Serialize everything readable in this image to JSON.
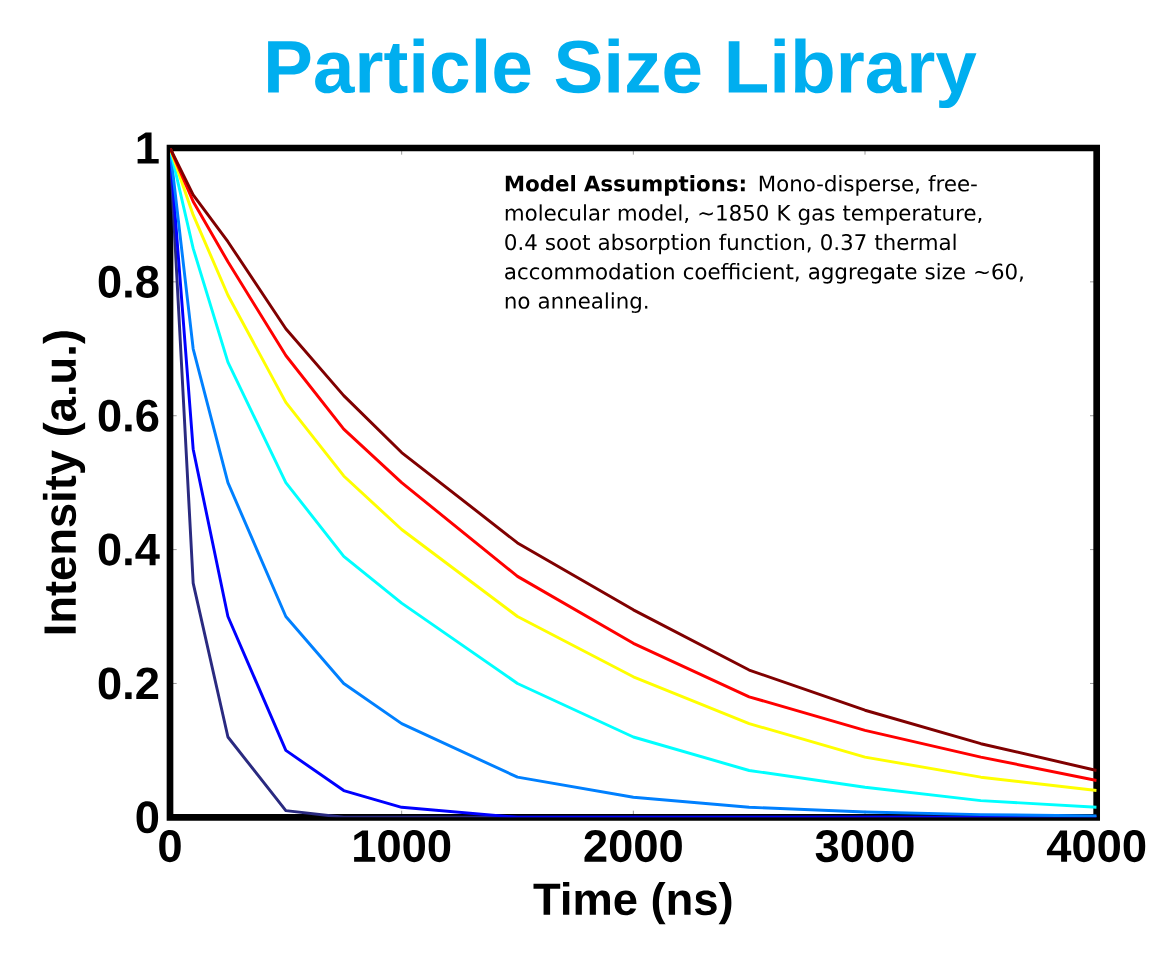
{
  "chart_data": {
    "type": "line",
    "title": "Particle Size Library",
    "xlabel": "Time (ns)",
    "ylabel": "Intensity (a.u.)",
    "annotations": [
      "**Model Assumptions:** Mono-disperse, free-molecular model, ~1850 K gas temperature, 0.4 soot absorption function, 0.37 thermal accommodation coefficient, aggregate size ~60, no annealing."
    ],
    "x": [
      0,
      100,
      250,
      500,
      750,
      1000,
      1500,
      2000,
      2500,
      3000,
      3500,
      4000
    ],
    "series": [
      {
        "color": "#2a2a80",
        "values": [
          1,
          0.35,
          0.12,
          0.01,
          0,
          0,
          0,
          0,
          0,
          0,
          0,
          0
        ]
      },
      {
        "color": "#0000ff",
        "values": [
          1,
          0.55,
          0.3,
          0.1,
          0.04,
          0.015,
          0,
          0,
          0,
          0,
          0,
          0
        ]
      },
      {
        "color": "#0080ff",
        "values": [
          1,
          0.7,
          0.5,
          0.3,
          0.2,
          0.14,
          0.06,
          0.03,
          0.015,
          0.008,
          0.004,
          0.002
        ]
      },
      {
        "color": "#00ffff",
        "values": [
          1,
          0.85,
          0.68,
          0.5,
          0.39,
          0.32,
          0.2,
          0.12,
          0.07,
          0.045,
          0.025,
          0.015
        ]
      },
      {
        "color": "#ffff00",
        "values": [
          1,
          0.9,
          0.78,
          0.62,
          0.51,
          0.43,
          0.3,
          0.21,
          0.14,
          0.09,
          0.06,
          0.04
        ]
      },
      {
        "color": "#ff0000",
        "values": [
          1,
          0.92,
          0.83,
          0.69,
          0.58,
          0.5,
          0.36,
          0.26,
          0.18,
          0.13,
          0.09,
          0.055
        ]
      },
      {
        "color": "#800000",
        "values": [
          1,
          0.93,
          0.86,
          0.73,
          0.63,
          0.545,
          0.41,
          0.31,
          0.22,
          0.16,
          0.11,
          0.07
        ]
      }
    ],
    "xlim": [
      0,
      4000
    ],
    "ylim": [
      0,
      1
    ],
    "xticks": [
      0,
      1000,
      2000,
      3000,
      4000
    ],
    "yticks": [
      0,
      0.2,
      0.4,
      0.6,
      0.8,
      1
    ]
  }
}
